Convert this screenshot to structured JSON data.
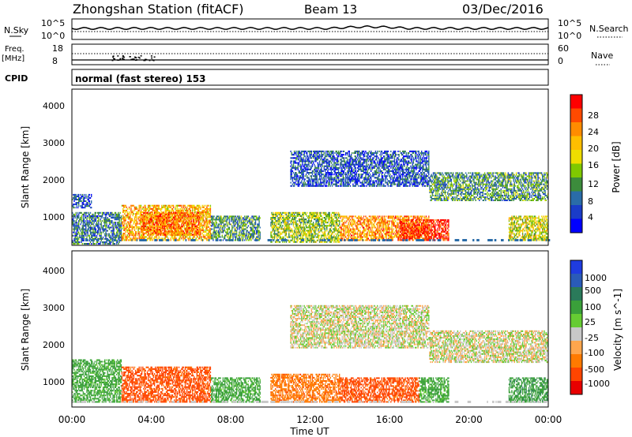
{
  "header": {
    "title": "Zhongshan Station (fitACF)",
    "beam": "Beam 13",
    "date": "03/Dec/2016"
  },
  "strip": {
    "nsky_label": "N.Sky",
    "nsky_ticks": [
      "10^5",
      "10^0"
    ],
    "nsearch_label": "N.Search",
    "nsearch_ticks": [
      "10^5",
      "10^0"
    ],
    "freq_label_1": "Freq.",
    "freq_label_2": "[MHz]",
    "freq_ticks": [
      "18",
      "8"
    ],
    "nave_label": "Nave",
    "nave_ticks": [
      "60",
      "0"
    ],
    "cpid_label": "CPID",
    "cpid_text": "normal (fast stereo) 153"
  },
  "time_ticks": [
    "00:00",
    "04:00",
    "08:00",
    "12:00",
    "16:00",
    "20:00",
    "00:00"
  ],
  "xlabel": "Time UT",
  "panels": {
    "power": {
      "ylabel": "Slant Range [km]",
      "yticks": [
        "4000",
        "3000",
        "2000",
        "1000"
      ],
      "cbar_label": "Power [dB]",
      "cbar_ticks": [
        "28",
        "24",
        "20",
        "16",
        "12",
        "8",
        "4"
      ],
      "cbar_colors": [
        "#ff0000",
        "#ff4a00",
        "#ff8c00",
        "#ffbe00",
        "#eedd00",
        "#7fc800",
        "#3c8c3c",
        "#2a6ca8",
        "#1a3cc8",
        "#0000ff"
      ]
    },
    "velocity": {
      "ylabel": "Slant Range [km]",
      "yticks": [
        "4000",
        "3000",
        "2000",
        "1000"
      ],
      "cbar_label": "Velocity [m s^-1]",
      "cbar_ticks": [
        "1000",
        "500",
        "100",
        "25",
        "-25",
        "-100",
        "-500",
        "-1000"
      ],
      "cbar_colors": [
        "#1f3ce0",
        "#2a5bb8",
        "#2a7a5a",
        "#3aa03a",
        "#66cc33",
        "#c8c8c8",
        "#ffa64d",
        "#ff7a00",
        "#ff4500",
        "#e80000"
      ]
    }
  },
  "chart_data": [
    {
      "type": "heatmap",
      "title": "Power",
      "xlabel": "Time UT",
      "ylabel": "Slant Range [km]",
      "xlim": [
        "00:00",
        "24:00"
      ],
      "ylim": [
        180,
        4500
      ],
      "colorbar": {
        "label": "Power [dB]",
        "range": [
          0,
          30
        ],
        "ticks": [
          4,
          8,
          12,
          16,
          20,
          24,
          28
        ]
      },
      "regions": [
        {
          "t0": 0.0,
          "t1": 1.0,
          "r0": 1200,
          "r1": 1600,
          "value": 6
        },
        {
          "t0": 0.0,
          "t1": 2.5,
          "r0": 200,
          "r1": 1100,
          "value": 8
        },
        {
          "t0": 2.5,
          "t1": 7.0,
          "r0": 300,
          "r1": 1300,
          "value": 20
        },
        {
          "t0": 3.5,
          "t1": 6.5,
          "r0": 450,
          "r1": 1100,
          "value": 24
        },
        {
          "t0": 7.0,
          "t1": 9.5,
          "r0": 300,
          "r1": 1000,
          "value": 10
        },
        {
          "t0": 10.0,
          "t1": 13.5,
          "r0": 250,
          "r1": 1100,
          "value": 14
        },
        {
          "t0": 13.5,
          "t1": 18.0,
          "r0": 300,
          "r1": 1000,
          "value": 22
        },
        {
          "t0": 16.5,
          "t1": 19.0,
          "r0": 300,
          "r1": 900,
          "value": 28
        },
        {
          "t0": 11.0,
          "t1": 18.0,
          "r0": 1800,
          "r1": 2800,
          "value": 6
        },
        {
          "t0": 18.0,
          "t1": 24.0,
          "r0": 1400,
          "r1": 2200,
          "value": 10
        },
        {
          "t0": 22.0,
          "t1": 24.0,
          "r0": 300,
          "r1": 1000,
          "value": 16
        }
      ]
    },
    {
      "type": "heatmap",
      "title": "Velocity",
      "xlabel": "Time UT",
      "ylabel": "Slant Range [km]",
      "xlim": [
        "00:00",
        "24:00"
      ],
      "ylim": [
        180,
        4500
      ],
      "colorbar": {
        "label": "Velocity [m s^-1]",
        "range": [
          -1000,
          1000
        ],
        "ticks": [
          1000,
          500,
          100,
          25,
          -25,
          -100,
          -500,
          -1000
        ]
      },
      "regions": [
        {
          "t0": 0.0,
          "t1": 2.5,
          "r0": 300,
          "r1": 1500,
          "value": 150
        },
        {
          "t0": 2.5,
          "t1": 7.0,
          "r0": 300,
          "r1": 1300,
          "value": -300
        },
        {
          "t0": 7.0,
          "t1": 9.5,
          "r0": 300,
          "r1": 1000,
          "value": 150
        },
        {
          "t0": 10.0,
          "t1": 13.5,
          "r0": 300,
          "r1": 1100,
          "value": -200
        },
        {
          "t0": 13.5,
          "t1": 17.5,
          "r0": 300,
          "r1": 1000,
          "value": -300
        },
        {
          "t0": 17.5,
          "t1": 19.0,
          "r0": 300,
          "r1": 1000,
          "value": 150
        },
        {
          "t0": 11.0,
          "t1": 18.0,
          "r0": 1800,
          "r1": 3000,
          "value": 0
        },
        {
          "t0": 18.0,
          "t1": 24.0,
          "r0": 1400,
          "r1": 2300,
          "value": 0
        },
        {
          "t0": 22.0,
          "t1": 24.0,
          "r0": 300,
          "r1": 1000,
          "value": 200
        }
      ]
    }
  ]
}
